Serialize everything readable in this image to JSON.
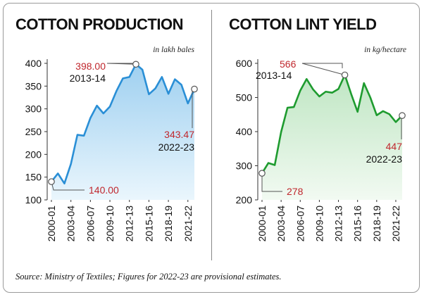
{
  "source_note": "Source: Ministry of Textiles; Figures for 2022-23 are provisional estimates.",
  "colors": {
    "production_line": "#2a8fd6",
    "production_fill_top": "#9fd0f0",
    "production_fill_bottom": "#eaf6fd",
    "yield_line": "#1e9b2f",
    "yield_fill_top": "#bfe6c3",
    "yield_fill_bottom": "#f2faf2",
    "annotation_value": "#c0272d"
  },
  "chart_data": [
    {
      "type": "area",
      "title": "COTTON PRODUCTION",
      "unit_label": "in lakh bales",
      "years": [
        "2000-01",
        "2001-02",
        "2002-03",
        "2003-04",
        "2004-05",
        "2005-06",
        "2006-07",
        "2007-08",
        "2008-09",
        "2009-10",
        "2010-11",
        "2011-12",
        "2012-13",
        "2013-14",
        "2014-15",
        "2015-16",
        "2016-17",
        "2017-18",
        "2018-19",
        "2019-20",
        "2020-21",
        "2021-22",
        "2022-23"
      ],
      "values": [
        140.0,
        158,
        136,
        179,
        243,
        241,
        280,
        307,
        290,
        305,
        339,
        367,
        370,
        398.0,
        386,
        332,
        345,
        370,
        333,
        365,
        353,
        312,
        343.47
      ],
      "x_tick_labels": [
        "2000-01",
        "2003-04",
        "2006-07",
        "2009-10",
        "2012-13",
        "2015-16",
        "2018-19",
        "2021-22"
      ],
      "ylim": [
        100,
        400
      ],
      "yticks": [
        100,
        150,
        200,
        250,
        300,
        350,
        400
      ],
      "annotations": [
        {
          "index": 0,
          "value_label": "140.00",
          "year_label": ""
        },
        {
          "index": 13,
          "value_label": "398.00",
          "year_label": "2013-14"
        },
        {
          "index": 22,
          "value_label": "343.47",
          "year_label": "2022-23"
        }
      ]
    },
    {
      "type": "area",
      "title": "COTTON LINT YIELD",
      "unit_label": "in kg/hectare",
      "years": [
        "2000-01",
        "2001-02",
        "2002-03",
        "2003-04",
        "2004-05",
        "2005-06",
        "2006-07",
        "2007-08",
        "2008-09",
        "2009-10",
        "2010-11",
        "2011-12",
        "2012-13",
        "2013-14",
        "2014-15",
        "2015-16",
        "2016-17",
        "2017-18",
        "2018-19",
        "2019-20",
        "2020-21",
        "2021-22",
        "2022-23"
      ],
      "values": [
        278,
        308,
        302,
        399,
        470,
        472,
        520,
        554,
        524,
        503,
        517,
        514,
        525,
        566,
        510,
        458,
        542,
        500,
        448,
        460,
        451,
        428,
        447
      ],
      "x_tick_labels": [
        "2000-01",
        "2003-04",
        "2006-07",
        "2009-10",
        "2012-13",
        "2015-16",
        "2018-19",
        "2021-22"
      ],
      "ylim": [
        200,
        600
      ],
      "yticks": [
        200,
        300,
        400,
        500,
        600
      ],
      "annotations": [
        {
          "index": 0,
          "value_label": "278",
          "year_label": ""
        },
        {
          "index": 13,
          "value_label": "566",
          "year_label": "2013-14"
        },
        {
          "index": 22,
          "value_label": "447",
          "year_label": "2022-23"
        }
      ]
    }
  ]
}
